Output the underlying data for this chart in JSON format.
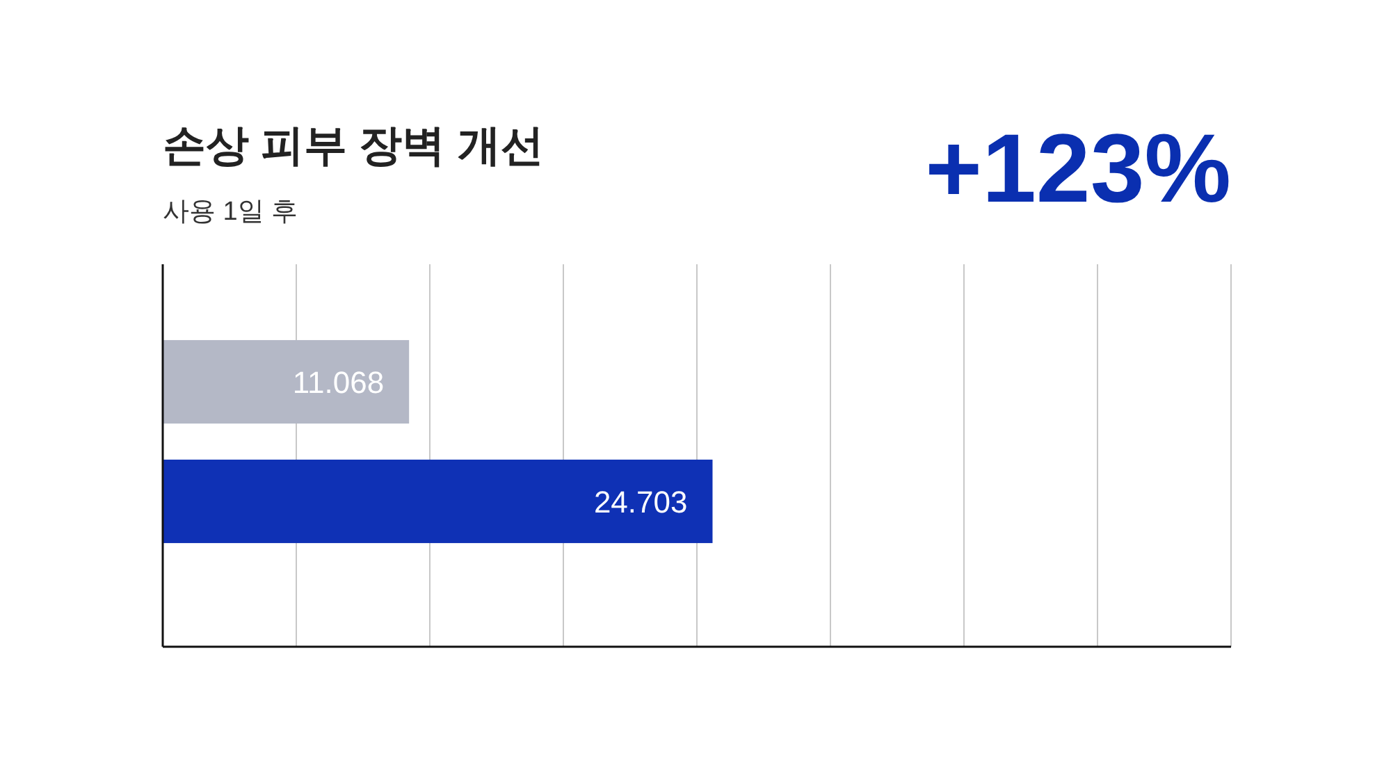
{
  "chart_data": {
    "type": "bar",
    "orientation": "horizontal",
    "title": "손상 피부 장벽 개선",
    "subtitle": "사용 1일 후",
    "annotations": [
      "+123%"
    ],
    "categories": [
      null,
      null
    ],
    "values": [
      11.068,
      24.703
    ],
    "colors": [
      "#b4b8c6",
      "#0f31b5"
    ],
    "data_labels": true,
    "xlim": [
      0,
      48
    ],
    "xticks": [
      {
        "value": 0,
        "label": null
      },
      {
        "value": 6,
        "label": null
      },
      {
        "value": 12,
        "label": null
      },
      {
        "value": 18,
        "label": null
      },
      {
        "value": 24,
        "label": null
      },
      {
        "value": 30,
        "label": null
      },
      {
        "value": 36,
        "label": null
      },
      {
        "value": 42,
        "label": null
      },
      {
        "value": 48,
        "label": null
      }
    ],
    "grid": "x"
  }
}
